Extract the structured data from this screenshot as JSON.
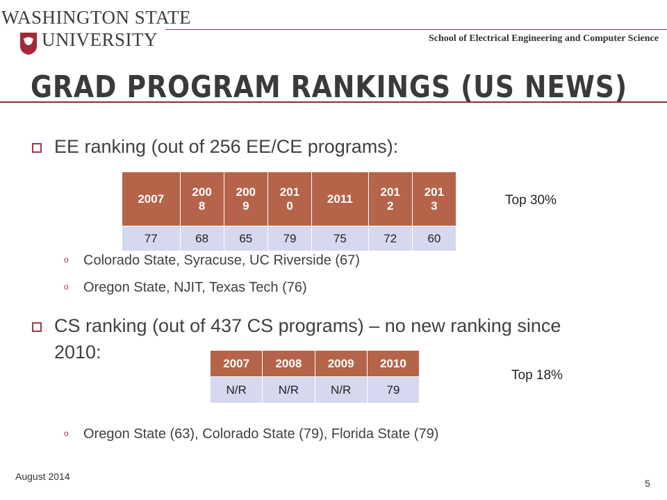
{
  "header": {
    "logo_line1": "WASHINGTON STATE",
    "logo_line2": "UNIVERSITY",
    "school": "School of Electrical Engineering and Computer Science"
  },
  "title": "Grad Program Rankings (US News)",
  "ee": {
    "bullet": "EE ranking (out of 256 EE/CE programs):",
    "table": {
      "headers": [
        "2007",
        "200\n8",
        "200\n9",
        "201\n0",
        "2011",
        "201\n2",
        "201\n3"
      ],
      "values": [
        "77",
        "68",
        "65",
        "79",
        "75",
        "72",
        "60"
      ]
    },
    "note": "Top 30%",
    "subs": [
      "Colorado State, Syracuse, UC Riverside (67)",
      "Oregon State, NJIT, Texas Tech (76)"
    ]
  },
  "cs": {
    "bullet_line1": "CS ranking (out of 437 CS programs) – no new ranking since",
    "bullet_line2": "2010:",
    "table": {
      "headers": [
        "2007",
        "2008",
        "2009",
        "2010"
      ],
      "values": [
        "N/R",
        "N/R",
        "N/R",
        "79"
      ]
    },
    "note": "Top 18%",
    "subs": [
      "Oregon State (63), Colorado State (79), Florida State (79)"
    ]
  },
  "footer": {
    "date": "August 2014",
    "page": "5"
  },
  "colors": {
    "accent": "#8d2b37",
    "table_header": "#b5644a",
    "table_cell": "#d5d8ef"
  }
}
